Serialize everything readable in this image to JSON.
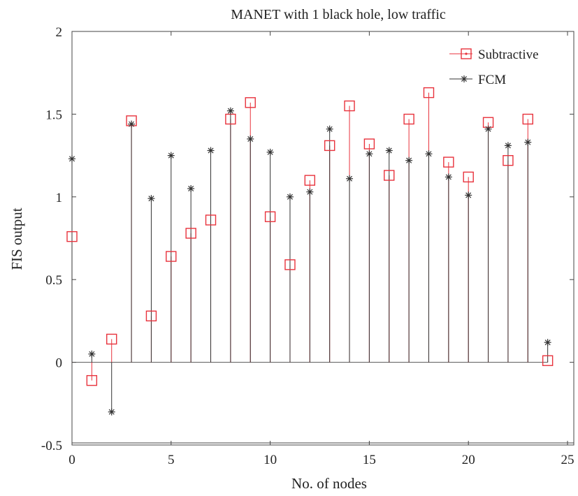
{
  "chart_data": {
    "type": "stem",
    "title": "MANET with 1 black hole, low traffic",
    "xlabel": "No. of nodes",
    "ylabel": "FIS output",
    "xlim": [
      0,
      25
    ],
    "ylim": [
      -0.5,
      2
    ],
    "x_ticks": [
      0,
      5,
      10,
      15,
      20,
      25
    ],
    "y_ticks": [
      -0.5,
      0,
      0.5,
      1,
      1.5,
      2
    ],
    "x_tick_labels": [
      "0",
      "5",
      "10",
      "15",
      "20",
      "25"
    ],
    "y_tick_labels": [
      "-0.5",
      "0",
      "0.5",
      "1",
      "1.5",
      "2"
    ],
    "legend_position": "top-right",
    "grid": false,
    "x": [
      0,
      1,
      2,
      3,
      4,
      5,
      6,
      7,
      8,
      9,
      10,
      11,
      12,
      13,
      14,
      15,
      16,
      17,
      18,
      19,
      20,
      21,
      22,
      23,
      24
    ],
    "series": [
      {
        "name": "Subtractive",
        "color": "#e8323c",
        "marker": "square",
        "values": [
          0.76,
          -0.11,
          0.14,
          1.46,
          0.28,
          0.64,
          0.78,
          0.86,
          1.47,
          1.57,
          0.88,
          0.59,
          1.1,
          1.31,
          1.55,
          1.32,
          1.13,
          1.47,
          1.63,
          1.21,
          1.12,
          1.45,
          1.22,
          1.47,
          0.01
        ]
      },
      {
        "name": "FCM",
        "color": "#333333",
        "marker": "asterisk",
        "values": [
          1.23,
          0.05,
          -0.3,
          1.44,
          0.99,
          1.25,
          1.05,
          1.28,
          1.52,
          1.35,
          1.27,
          1.0,
          1.03,
          1.41,
          1.11,
          1.26,
          1.28,
          1.22,
          1.26,
          1.12,
          1.01,
          1.41,
          1.31,
          1.33,
          0.12
        ]
      }
    ]
  }
}
